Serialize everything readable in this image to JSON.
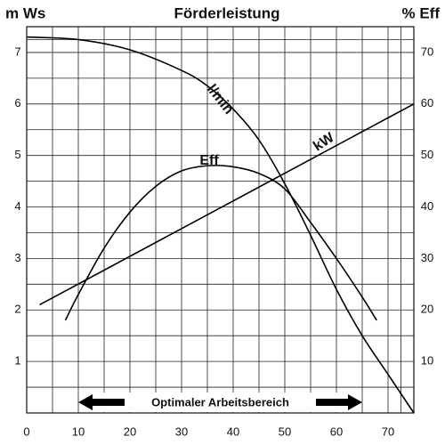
{
  "chart_data": {
    "type": "line",
    "title": "Förderleistung",
    "y_label": "m Ws",
    "y2_label": "% Eff",
    "xlim": [
      0,
      75
    ],
    "xticks": [
      0,
      10,
      20,
      30,
      40,
      50,
      60,
      70
    ],
    "ylim": [
      0,
      7.5
    ],
    "yticks": [
      1,
      2,
      3,
      4,
      5,
      6,
      7
    ],
    "y2lim": [
      0,
      75
    ],
    "y2ticks": [
      10,
      20,
      30,
      40,
      50,
      60,
      70
    ],
    "grid": true,
    "series": [
      {
        "name": "l/min",
        "color": "#000000",
        "x": [
          0,
          10,
          20,
          30,
          35,
          40,
          45,
          50,
          55,
          60,
          65,
          70,
          75
        ],
        "values": [
          7.3,
          7.25,
          7.05,
          6.65,
          6.35,
          5.9,
          5.3,
          4.45,
          3.45,
          2.4,
          1.5,
          0.75,
          0
        ]
      },
      {
        "name": "Eff",
        "color": "#000000",
        "axis": "y2",
        "x": [
          7.5,
          10,
          15,
          20,
          25,
          30,
          35,
          40,
          45,
          50,
          55,
          60,
          65,
          67.8
        ],
        "values": [
          18,
          23,
          32,
          39,
          44,
          47,
          48,
          47.8,
          46.5,
          43.5,
          37,
          30,
          22.5,
          18
        ]
      },
      {
        "name": "kW",
        "color": "#000000",
        "x": [
          2.5,
          75
        ],
        "values": [
          2.1,
          6.0
        ]
      }
    ],
    "optimal_range": {
      "label": "Optimaler Arbeitsbereich",
      "x": [
        10,
        65
      ]
    }
  }
}
